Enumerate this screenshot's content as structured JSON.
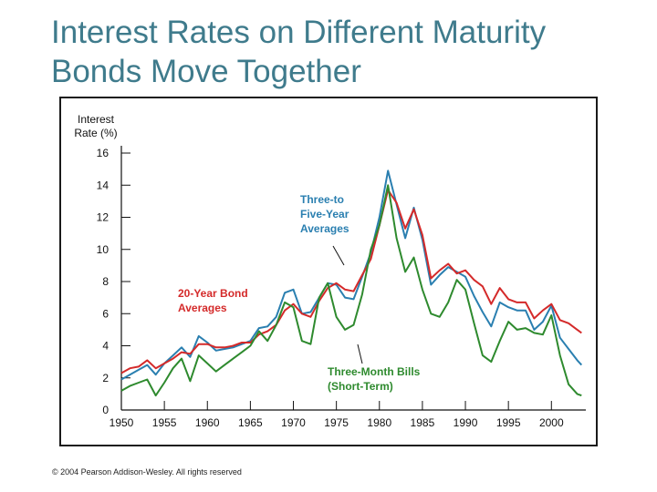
{
  "slide": {
    "title_line1": "Interest Rates on Different Maturity",
    "title_line2": "Bonds Move Together",
    "copyright": "© 2004 Pearson Addison-Wesley. All rights reserved"
  },
  "colors": {
    "title": "#3f7b8c",
    "twenty_year": "#d42a2a",
    "three_to_five": "#2a7fb0",
    "three_month": "#2e8a2e"
  },
  "chart_data": {
    "type": "line",
    "title": "",
    "ylabel_line1": "Interest",
    "ylabel_line2": "Rate (%)",
    "xlabel": "",
    "xlim": [
      1950,
      2004
    ],
    "ylim": [
      0,
      16
    ],
    "y_ticks": [
      0,
      2,
      4,
      6,
      8,
      10,
      12,
      14,
      16
    ],
    "x_ticks": [
      1950,
      1955,
      1960,
      1965,
      1970,
      1975,
      1980,
      1985,
      1990,
      1995,
      2000
    ],
    "grid": false,
    "annotations": [
      {
        "series": "3to5",
        "lines": [
          "Three-to",
          "Five-Year",
          "Averages"
        ],
        "color": "#2a7fb0"
      },
      {
        "series": "20y",
        "lines": [
          "20-Year Bond",
          "Averages"
        ],
        "color": "#d42a2a"
      },
      {
        "series": "3m",
        "lines": [
          "Three-Month Bills",
          "(Short-Term)"
        ],
        "color": "#2e8a2e"
      }
    ],
    "series": [
      {
        "id": "3to5",
        "name": "Three-to Five-Year Averages",
        "color": "#2a7fb0",
        "x": [
          1950,
          1951,
          1952,
          1953,
          1954,
          1955,
          1956,
          1957,
          1958,
          1959,
          1960,
          1961,
          1962,
          1963,
          1964,
          1965,
          1966,
          1967,
          1968,
          1969,
          1970,
          1971,
          1972,
          1973,
          1974,
          1975,
          1976,
          1977,
          1978,
          1979,
          1980,
          1981,
          1982,
          1983,
          1984,
          1985,
          1986,
          1987,
          1988,
          1989,
          1990,
          1991,
          1992,
          1993,
          1994,
          1995,
          1996,
          1997,
          1998,
          1999,
          2000,
          2001,
          2002,
          2003,
          2003.5
        ],
        "values": [
          1.9,
          2.2,
          2.5,
          2.8,
          2.2,
          2.9,
          3.4,
          3.9,
          3.3,
          4.6,
          4.2,
          3.7,
          3.8,
          3.9,
          4.1,
          4.3,
          5.1,
          5.2,
          5.8,
          7.3,
          7.5,
          6.0,
          6.1,
          7.0,
          7.9,
          7.8,
          7.0,
          6.9,
          8.3,
          9.8,
          12.0,
          14.9,
          12.8,
          10.7,
          12.6,
          10.6,
          7.8,
          8.4,
          8.9,
          8.6,
          8.3,
          7.1,
          6.1,
          5.2,
          6.7,
          6.4,
          6.2,
          6.2,
          5.0,
          5.5,
          6.5,
          4.5,
          3.8,
          3.1,
          2.8
        ]
      },
      {
        "id": "20y",
        "name": "20-Year Bond Averages",
        "color": "#d42a2a",
        "x": [
          1950,
          1951,
          1952,
          1953,
          1954,
          1955,
          1956,
          1957,
          1958,
          1959,
          1960,
          1961,
          1962,
          1963,
          1964,
          1965,
          1966,
          1967,
          1968,
          1969,
          1970,
          1971,
          1972,
          1973,
          1974,
          1975,
          1976,
          1977,
          1978,
          1979,
          1980,
          1981,
          1982,
          1983,
          1984,
          1985,
          1986,
          1987,
          1988,
          1989,
          1990,
          1991,
          1992,
          1993,
          1994,
          1995,
          1996,
          1997,
          1998,
          1999,
          2000,
          2001,
          2002,
          2003,
          2003.5
        ],
        "values": [
          2.3,
          2.6,
          2.7,
          3.1,
          2.6,
          2.9,
          3.2,
          3.6,
          3.5,
          4.1,
          4.1,
          3.9,
          3.9,
          4.0,
          4.2,
          4.2,
          4.7,
          4.9,
          5.3,
          6.2,
          6.6,
          6.0,
          5.8,
          6.8,
          7.6,
          7.9,
          7.5,
          7.4,
          8.4,
          9.4,
          11.5,
          13.7,
          12.9,
          11.3,
          12.5,
          10.9,
          8.2,
          8.7,
          9.1,
          8.5,
          8.7,
          8.1,
          7.7,
          6.6,
          7.6,
          6.9,
          6.7,
          6.7,
          5.7,
          6.2,
          6.6,
          5.6,
          5.4,
          5.0,
          4.8
        ]
      },
      {
        "id": "3m",
        "name": "Three-Month Bills (Short-Term)",
        "color": "#2e8a2e",
        "x": [
          1950,
          1951,
          1952,
          1953,
          1954,
          1955,
          1956,
          1957,
          1958,
          1959,
          1960,
          1961,
          1962,
          1963,
          1964,
          1965,
          1966,
          1967,
          1968,
          1969,
          1970,
          1971,
          1972,
          1973,
          1974,
          1975,
          1976,
          1977,
          1978,
          1979,
          1980,
          1981,
          1982,
          1983,
          1984,
          1985,
          1986,
          1987,
          1988,
          1989,
          1990,
          1991,
          1992,
          1993,
          1994,
          1995,
          1996,
          1997,
          1998,
          1999,
          2000,
          2001,
          2002,
          2003,
          2003.5
        ],
        "values": [
          1.2,
          1.5,
          1.7,
          1.9,
          0.9,
          1.7,
          2.6,
          3.2,
          1.8,
          3.4,
          2.9,
          2.4,
          2.8,
          3.2,
          3.6,
          4.0,
          4.9,
          4.3,
          5.3,
          6.7,
          6.4,
          4.3,
          4.1,
          7.0,
          7.9,
          5.8,
          5.0,
          5.3,
          7.2,
          10.0,
          11.5,
          14.0,
          10.7,
          8.6,
          9.5,
          7.5,
          6.0,
          5.8,
          6.7,
          8.1,
          7.5,
          5.4,
          3.4,
          3.0,
          4.3,
          5.5,
          5.0,
          5.1,
          4.8,
          4.7,
          5.9,
          3.4,
          1.6,
          1.0,
          0.9
        ]
      }
    ]
  }
}
